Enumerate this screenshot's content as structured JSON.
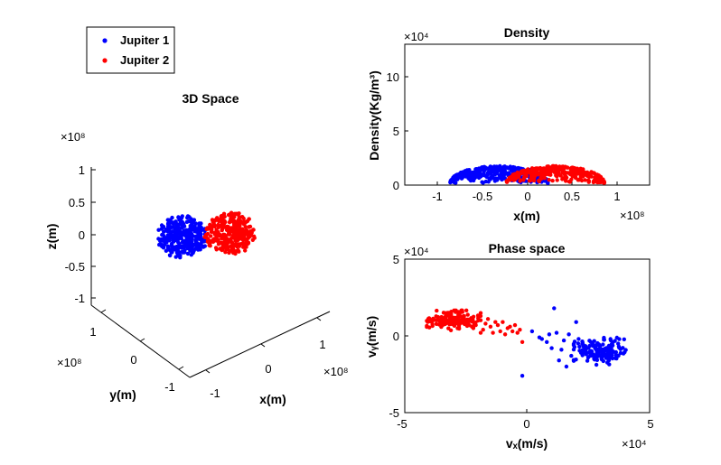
{
  "legend": {
    "items": [
      {
        "label": "Jupiter 1",
        "color": "#0000ff"
      },
      {
        "label": "Jupiter 2",
        "color": "#ff0000"
      }
    ]
  },
  "chart_data": [
    {
      "type": "scatter",
      "title": "3D Space",
      "projection": "3d",
      "xlabel": "x(m)",
      "ylabel": "y(m)",
      "zlabel": "z(m)",
      "exponent_label": "×10⁸",
      "xlim": [
        -1.2,
        1.2
      ],
      "ylim": [
        -1.2,
        1.2
      ],
      "zlim": [
        -1.2,
        1.2
      ],
      "ticks": {
        "x": [
          "-1",
          "0",
          "1"
        ],
        "y": [
          "-1",
          "0",
          "1"
        ],
        "z": [
          "-1",
          "-0.5",
          "0",
          "0.5",
          "1"
        ]
      },
      "series": [
        {
          "name": "Jupiter 1",
          "color": "#0000ff",
          "cloud": {
            "center_x": -0.5,
            "center_y": 0,
            "center_z": 0,
            "radius": 0.55,
            "count": 320
          }
        },
        {
          "name": "Jupiter 2",
          "color": "#ff0000",
          "cloud": {
            "center_x": 0.5,
            "center_y": 0,
            "center_z": 0.05,
            "radius": 0.55,
            "count": 320
          }
        }
      ]
    },
    {
      "type": "scatter",
      "title": "Density",
      "xlabel": "x(m)",
      "ylabel": "Density(Kg/m³)",
      "x_exponent_label": "×10⁸",
      "y_exponent_label": "×10⁴",
      "xlim": [
        -1.3,
        1.3
      ],
      "ylim": [
        0,
        13
      ],
      "xticks": [
        "-1",
        "-0.5",
        "0",
        "0.5",
        "1"
      ],
      "yticks": [
        "0",
        "5",
        "10"
      ],
      "series": [
        {
          "name": "Jupiter 1",
          "color": "#0000ff",
          "profile": {
            "center": -0.3,
            "half_width": 0.52,
            "peak": 1.6,
            "count": 340
          }
        },
        {
          "name": "Jupiter 2",
          "color": "#ff0000",
          "profile": {
            "center": 0.3,
            "half_width": 0.52,
            "peak": 1.6,
            "count": 340
          }
        }
      ]
    },
    {
      "type": "scatter",
      "title": "Phase space",
      "xlabel": "vₓ(m/s)",
      "ylabel": "vᵧ(m/s)",
      "x_exponent_label": "×10⁴",
      "y_exponent_label": "×10⁴",
      "xlim": [
        -5,
        5
      ],
      "ylim": [
        -5,
        5
      ],
      "xticks": [
        "-5",
        "0",
        "5"
      ],
      "yticks": [
        "-5",
        "0",
        "5"
      ],
      "series": [
        {
          "name": "Jupiter 1",
          "color": "#0000ff",
          "cluster": {
            "x": 3.0,
            "y": -1.0,
            "sx": 0.5,
            "sy": 0.4,
            "count": 160
          },
          "tail": [
            [
              0.5,
              -0.1
            ],
            [
              0.8,
              -0.4
            ],
            [
              1.0,
              -0.8
            ],
            [
              1.2,
              0.2
            ],
            [
              1.3,
              -1.6
            ],
            [
              1.5,
              -0.3
            ],
            [
              1.6,
              -2.0
            ],
            [
              1.7,
              0.1
            ],
            [
              1.9,
              -0.6
            ],
            [
              2.0,
              0.9
            ],
            [
              2.1,
              -0.2
            ],
            [
              2.2,
              -1.1
            ],
            [
              1.1,
              1.8
            ],
            [
              -0.2,
              -2.6
            ],
            [
              0.2,
              0.3
            ],
            [
              0.6,
              -0.2
            ],
            [
              1.4,
              -0.9
            ],
            [
              2.3,
              -0.7
            ],
            [
              1.8,
              -1.3
            ],
            [
              2.5,
              -0.8
            ],
            [
              2.6,
              -0.4
            ],
            [
              0.9,
              0.1
            ]
          ]
        },
        {
          "name": "Jupiter 2",
          "color": "#ff0000",
          "cluster": {
            "x": -3.0,
            "y": 1.0,
            "sx": 0.5,
            "sy": 0.3,
            "count": 160
          },
          "tail": [
            [
              -2.4,
              0.9
            ],
            [
              -2.2,
              0.5
            ],
            [
              -2.0,
              1.0
            ],
            [
              -1.8,
              0.4
            ],
            [
              -1.7,
              0.8
            ],
            [
              -1.5,
              0.6
            ],
            [
              -1.4,
              0.2
            ],
            [
              -1.2,
              0.7
            ],
            [
              -1.1,
              0.3
            ],
            [
              -1.0,
              0.9
            ],
            [
              -0.8,
              0.5
            ],
            [
              -0.6,
              0.3
            ],
            [
              -0.5,
              0.7
            ],
            [
              -0.3,
              0.4
            ],
            [
              -0.2,
              -0.4
            ],
            [
              -1.9,
              0.2
            ],
            [
              -1.3,
              0.9
            ],
            [
              -0.9,
              0.1
            ],
            [
              -2.1,
              0.7
            ],
            [
              -1.6,
              1.1
            ],
            [
              -0.7,
              0.6
            ],
            [
              -0.4,
              0.2
            ]
          ]
        }
      ]
    }
  ]
}
